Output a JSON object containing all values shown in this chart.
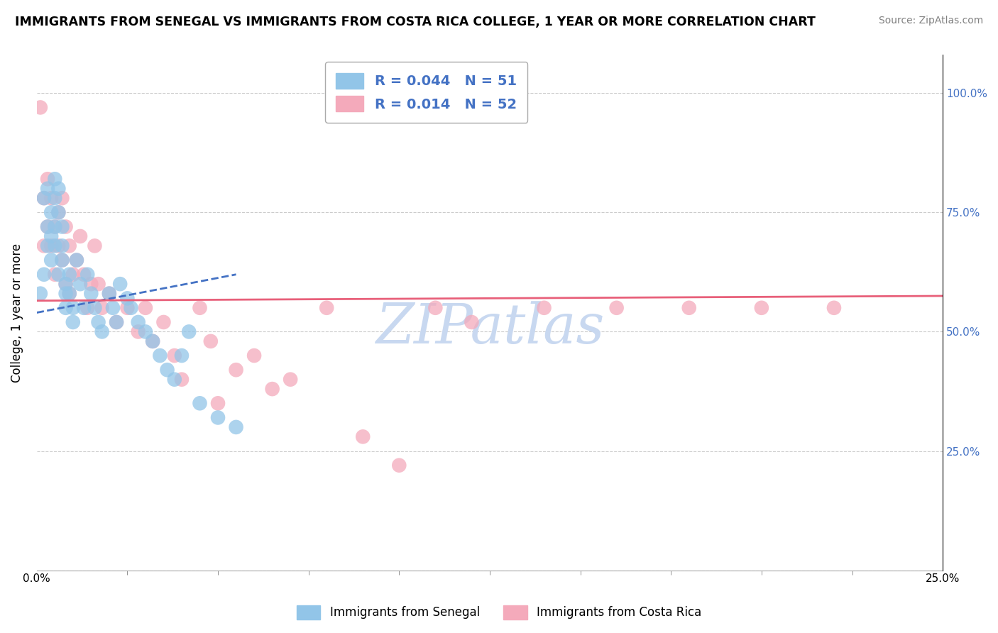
{
  "title": "IMMIGRANTS FROM SENEGAL VS IMMIGRANTS FROM COSTA RICA COLLEGE, 1 YEAR OR MORE CORRELATION CHART",
  "source": "Source: ZipAtlas.com",
  "ylabel": "College, 1 year or more",
  "xlim": [
    0.0,
    0.25
  ],
  "ylim": [
    0.0,
    1.08
  ],
  "senegal_R": 0.044,
  "senegal_N": 51,
  "costarica_R": 0.014,
  "costarica_N": 52,
  "senegal_color": "#92C5E8",
  "costarica_color": "#F4AABB",
  "senegal_line_color": "#4472C4",
  "costarica_line_color": "#E8607A",
  "background_color": "#FFFFFF",
  "grid_color": "#CCCCCC",
  "watermark_color": "#C8D8F0",
  "senegal_x": [
    0.001,
    0.002,
    0.002,
    0.003,
    0.003,
    0.003,
    0.004,
    0.004,
    0.004,
    0.005,
    0.005,
    0.005,
    0.005,
    0.006,
    0.006,
    0.006,
    0.007,
    0.007,
    0.007,
    0.008,
    0.008,
    0.008,
    0.009,
    0.009,
    0.01,
    0.01,
    0.011,
    0.012,
    0.013,
    0.014,
    0.015,
    0.016,
    0.017,
    0.018,
    0.02,
    0.021,
    0.022,
    0.023,
    0.025,
    0.026,
    0.028,
    0.03,
    0.032,
    0.034,
    0.036,
    0.038,
    0.04,
    0.042,
    0.045,
    0.05,
    0.055
  ],
  "senegal_y": [
    0.58,
    0.62,
    0.78,
    0.8,
    0.72,
    0.68,
    0.75,
    0.7,
    0.65,
    0.82,
    0.78,
    0.72,
    0.68,
    0.8,
    0.75,
    0.62,
    0.72,
    0.68,
    0.65,
    0.6,
    0.58,
    0.55,
    0.58,
    0.62,
    0.55,
    0.52,
    0.65,
    0.6,
    0.55,
    0.62,
    0.58,
    0.55,
    0.52,
    0.5,
    0.58,
    0.55,
    0.52,
    0.6,
    0.57,
    0.55,
    0.52,
    0.5,
    0.48,
    0.45,
    0.42,
    0.4,
    0.45,
    0.5,
    0.35,
    0.32,
    0.3
  ],
  "costarica_x": [
    0.001,
    0.002,
    0.002,
    0.003,
    0.003,
    0.004,
    0.004,
    0.005,
    0.005,
    0.006,
    0.006,
    0.007,
    0.007,
    0.008,
    0.008,
    0.009,
    0.009,
    0.01,
    0.011,
    0.012,
    0.013,
    0.014,
    0.015,
    0.016,
    0.017,
    0.018,
    0.02,
    0.022,
    0.025,
    0.028,
    0.03,
    0.032,
    0.035,
    0.038,
    0.04,
    0.045,
    0.048,
    0.05,
    0.055,
    0.06,
    0.065,
    0.07,
    0.08,
    0.09,
    0.1,
    0.11,
    0.12,
    0.14,
    0.16,
    0.18,
    0.2,
    0.22
  ],
  "costarica_y": [
    0.97,
    0.78,
    0.68,
    0.82,
    0.72,
    0.78,
    0.68,
    0.72,
    0.62,
    0.75,
    0.68,
    0.78,
    0.65,
    0.72,
    0.6,
    0.68,
    0.58,
    0.62,
    0.65,
    0.7,
    0.62,
    0.55,
    0.6,
    0.68,
    0.6,
    0.55,
    0.58,
    0.52,
    0.55,
    0.5,
    0.55,
    0.48,
    0.52,
    0.45,
    0.4,
    0.55,
    0.48,
    0.35,
    0.42,
    0.45,
    0.38,
    0.4,
    0.55,
    0.28,
    0.22,
    0.55,
    0.52,
    0.55,
    0.55,
    0.55,
    0.55,
    0.55
  ],
  "senegal_trend_x": [
    0.0,
    0.055
  ],
  "senegal_trend_y": [
    0.54,
    0.62
  ],
  "costarica_trend_x": [
    0.0,
    0.25
  ],
  "costarica_trend_y": [
    0.565,
    0.575
  ]
}
